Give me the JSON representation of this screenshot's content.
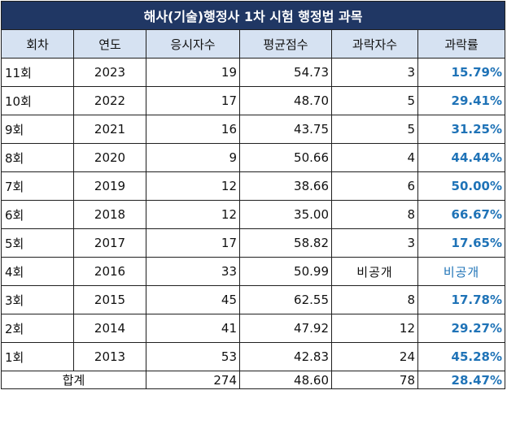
{
  "title": "해사(기술)행정사 1차 시험 행정법 과목",
  "headers": {
    "round": "회차",
    "year": "연도",
    "applicants": "응시자수",
    "average": "평균점수",
    "fail_count": "과락자수",
    "fail_rate": "과락률"
  },
  "rows": [
    {
      "round": "11회",
      "year": "2023",
      "applicants": "19",
      "average": "54.73",
      "fail_count": "3",
      "fail_rate": "15.79%"
    },
    {
      "round": "10회",
      "year": "2022",
      "applicants": "17",
      "average": "48.70",
      "fail_count": "5",
      "fail_rate": "29.41%"
    },
    {
      "round": "9회",
      "year": "2021",
      "applicants": "16",
      "average": "43.75",
      "fail_count": "5",
      "fail_rate": "31.25%"
    },
    {
      "round": "8회",
      "year": "2020",
      "applicants": "9",
      "average": "50.66",
      "fail_count": "4",
      "fail_rate": "44.44%"
    },
    {
      "round": "7회",
      "year": "2019",
      "applicants": "12",
      "average": "38.66",
      "fail_count": "6",
      "fail_rate": "50.00%"
    },
    {
      "round": "6회",
      "year": "2018",
      "applicants": "12",
      "average": "35.00",
      "fail_count": "8",
      "fail_rate": "66.67%"
    },
    {
      "round": "5회",
      "year": "2017",
      "applicants": "17",
      "average": "58.82",
      "fail_count": "3",
      "fail_rate": "17.65%"
    },
    {
      "round": "4회",
      "year": "2016",
      "applicants": "33",
      "average": "50.99",
      "fail_count": "비공개",
      "fail_rate": "비공개"
    },
    {
      "round": "3회",
      "year": "2015",
      "applicants": "45",
      "average": "62.55",
      "fail_count": "8",
      "fail_rate": "17.78%"
    },
    {
      "round": "2회",
      "year": "2014",
      "applicants": "41",
      "average": "47.92",
      "fail_count": "12",
      "fail_rate": "29.27%"
    },
    {
      "round": "1회",
      "year": "2013",
      "applicants": "53",
      "average": "42.83",
      "fail_count": "24",
      "fail_rate": "45.28%"
    }
  ],
  "total": {
    "label": "합계",
    "applicants": "274",
    "average": "48.60",
    "fail_count": "78",
    "fail_rate": "28.47%"
  },
  "colors": {
    "title_bg": "#203764",
    "header_bg": "#d6e2f2",
    "rate_text": "#1f73b7"
  }
}
